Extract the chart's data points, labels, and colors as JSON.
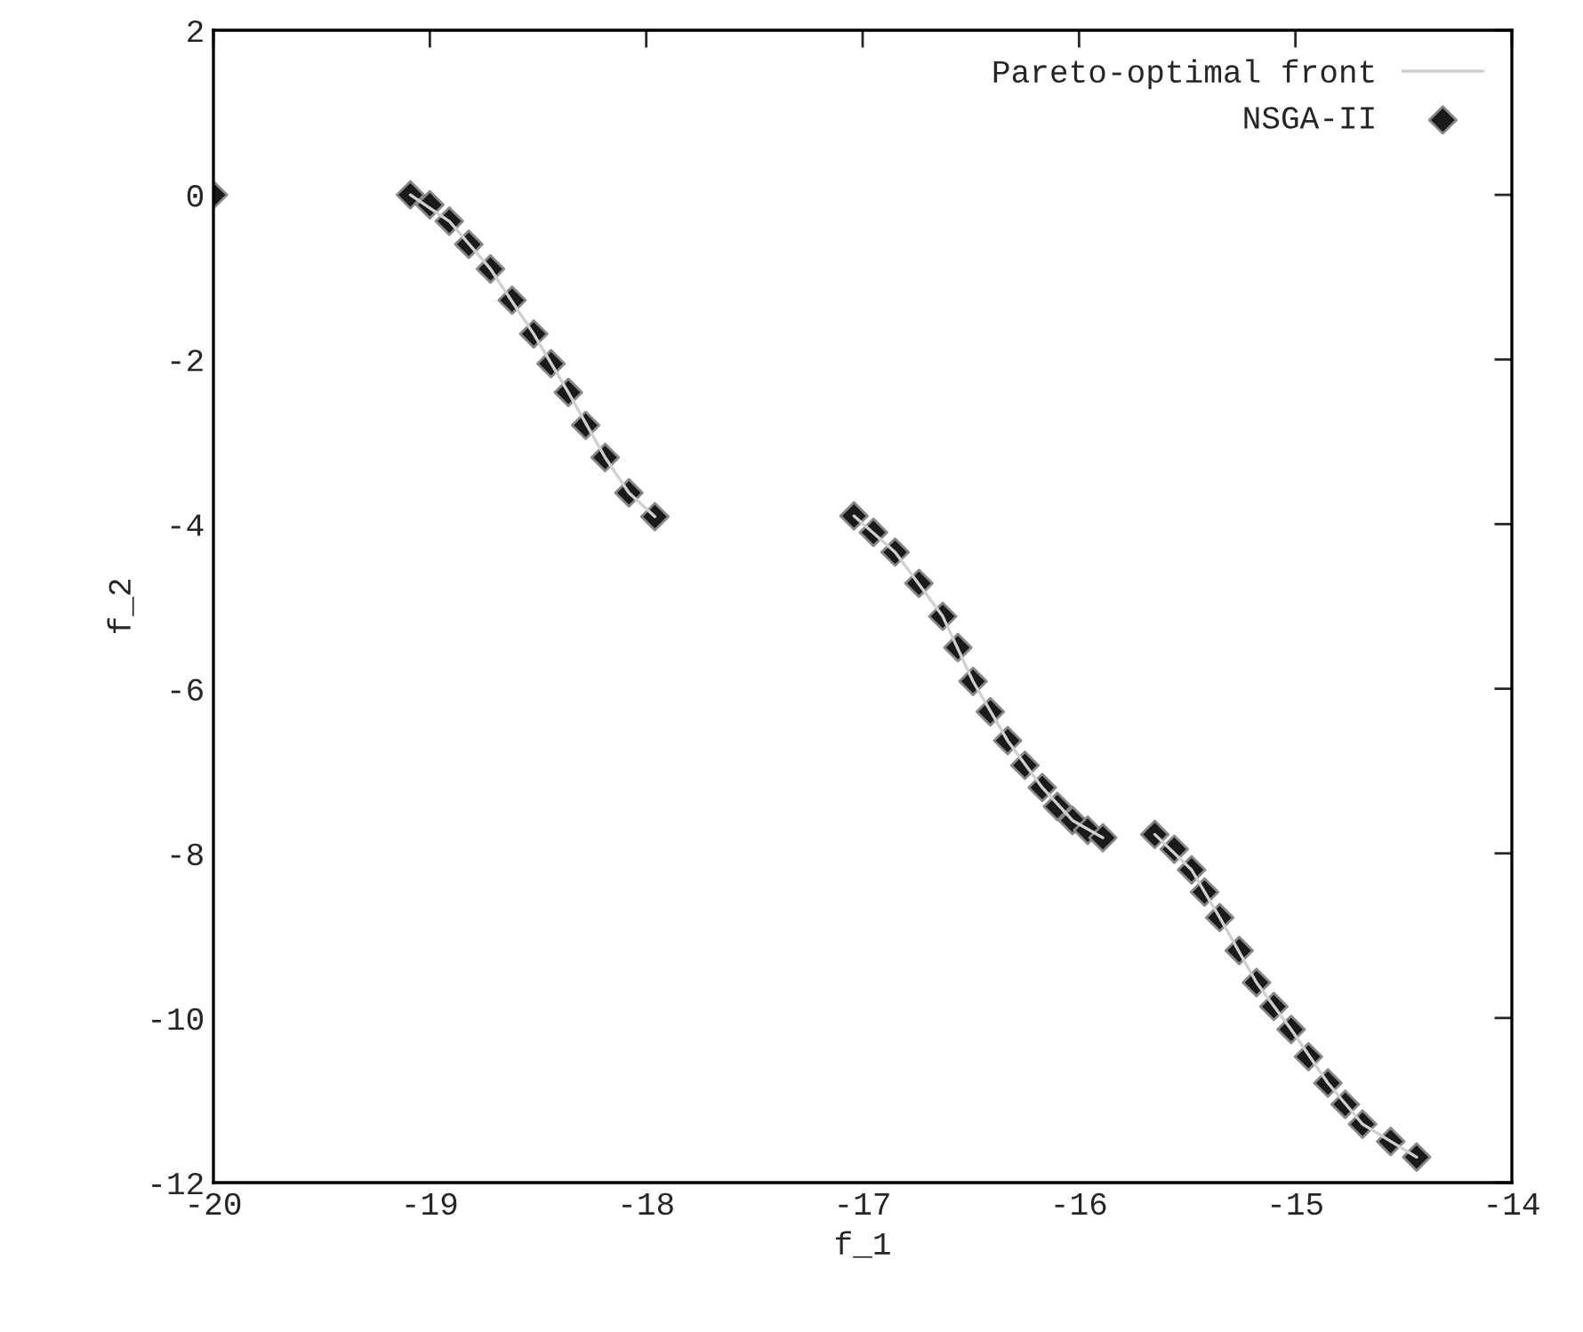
{
  "chart_data": {
    "type": "scatter",
    "xlabel": "f_1",
    "ylabel": "f_2",
    "xlim": [
      -20,
      -14
    ],
    "xticks": [
      -20,
      -19,
      -18,
      -17,
      -16,
      -15,
      -14
    ],
    "ylim": [
      -12,
      2
    ],
    "yticks": [
      -12,
      -10,
      -8,
      -6,
      -4,
      -2,
      0,
      2
    ],
    "grid": false,
    "legend": "top right",
    "series": [
      {
        "name": "Pareto-optimal front",
        "type": "line",
        "color": "#d0d0d0",
        "marker": "none",
        "line_style": "solid",
        "x": [
          -19.09,
          -18.91,
          -18.72,
          -18.52,
          -18.36,
          -18.19,
          -18.08,
          -17.96,
          null,
          -17.04,
          -16.85,
          -16.63,
          -16.49,
          -16.33,
          -16.17,
          -16.03,
          -15.89,
          null,
          -15.65,
          -15.48,
          -15.35,
          -15.18,
          -15.02,
          -14.85,
          -14.69,
          -14.44
        ],
        "values": [
          0,
          -0.32,
          -0.9,
          -1.69,
          -2.4,
          -3.19,
          -3.62,
          -3.91,
          null,
          -3.9,
          -4.34,
          -5.12,
          -5.91,
          -6.63,
          -7.2,
          -7.6,
          -7.81,
          null,
          -7.77,
          -8.2,
          -8.78,
          -9.57,
          -10.14,
          -10.79,
          -11.29,
          -11.69
        ]
      },
      {
        "name": "NSGA-II",
        "color": "#1a1a1a",
        "marker": "diamond",
        "x": [
          -20,
          -19.09,
          -19.0,
          -18.91,
          -18.82,
          -18.72,
          -18.62,
          -18.52,
          -18.44,
          -18.36,
          -18.28,
          -18.19,
          -18.08,
          -17.96,
          -17.04,
          -16.95,
          -16.85,
          -16.74,
          -16.63,
          -16.56,
          -16.49,
          -16.41,
          -16.33,
          -16.25,
          -16.17,
          -16.1,
          -16.03,
          -15.96,
          -15.89,
          -15.65,
          -15.56,
          -15.48,
          -15.42,
          -15.35,
          -15.26,
          -15.18,
          -15.1,
          -15.02,
          -14.94,
          -14.85,
          -14.77,
          -14.69,
          -14.56,
          -14.44
        ],
        "values": [
          0,
          0,
          -0.12,
          -0.32,
          -0.6,
          -0.9,
          -1.28,
          -1.69,
          -2.05,
          -2.4,
          -2.8,
          -3.19,
          -3.62,
          -3.91,
          -3.9,
          -4.1,
          -4.34,
          -4.72,
          -5.12,
          -5.5,
          -5.91,
          -6.28,
          -6.63,
          -6.93,
          -7.2,
          -7.43,
          -7.6,
          -7.72,
          -7.81,
          -7.77,
          -7.95,
          -8.2,
          -8.47,
          -8.78,
          -9.18,
          -9.57,
          -9.86,
          -10.14,
          -10.47,
          -10.79,
          -11.05,
          -11.29,
          -11.5,
          -11.69
        ]
      }
    ]
  }
}
